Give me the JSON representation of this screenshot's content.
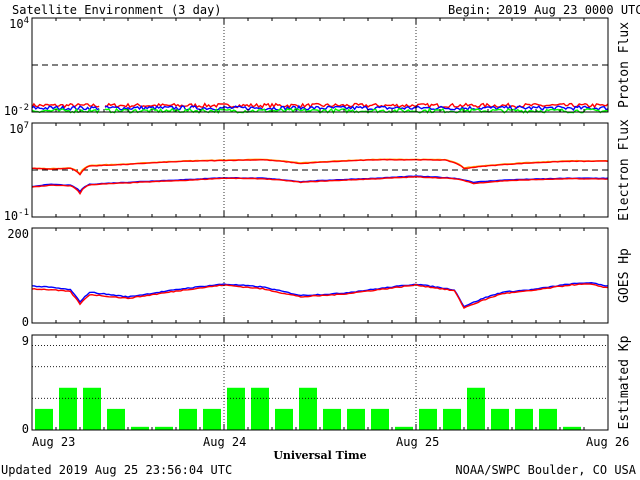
{
  "header": {
    "title": "Satellite Environment (3 day)",
    "begin_label": "Begin:",
    "begin_value": "2019 Aug 23 0000 UTC"
  },
  "footer": {
    "updated": "Updated 2019 Aug 25 23:56:04 UTC",
    "credit": "NOAA/SWPC Boulder, CO USA"
  },
  "colors": {
    "red": "#ff0000",
    "blue": "#0000ff",
    "green": "#00ff00",
    "orange": "#ffa500",
    "kp_bar": "#00ff00",
    "axes": "#000000"
  },
  "chart_data": [
    {
      "id": "proton",
      "type": "line",
      "ylabel": "Proton Flux",
      "yscale": "log",
      "ylim": [
        0.01,
        10000
      ],
      "y_ticks": [
        {
          "base": "10",
          "exp": "4"
        },
        {
          "base": "10",
          "exp": "-2"
        }
      ],
      "threshold": 10,
      "series": [
        {
          "color": "red",
          "level": 0.026
        },
        {
          "color": "blue",
          "level": 0.018
        },
        {
          "color": "green",
          "level": 0.012
        }
      ]
    },
    {
      "id": "electron",
      "type": "line",
      "ylabel": "Electron Flux",
      "yscale": "log",
      "ylim": [
        0.1,
        10000000
      ],
      "y_ticks": [
        {
          "base": "10",
          "exp": "7"
        },
        {
          "base": "10",
          "exp": "-1"
        }
      ],
      "threshold": 1000,
      "series": [
        {
          "color": "orange",
          "x": [
            0,
            0.1,
            0.2,
            0.25,
            0.3,
            0.5,
            0.8,
            1.0,
            1.2,
            1.4,
            1.6,
            1.8,
            2.0,
            2.15,
            2.25,
            2.5,
            2.8,
            3.0
          ],
          "y": [
            1400,
            1300,
            1500,
            500,
            2500,
            3200,
            6000,
            7000,
            8000,
            4000,
            6000,
            8000,
            8000,
            7500,
            1500,
            3500,
            6000,
            6000
          ]
        },
        {
          "color": "red",
          "x": [
            0,
            0.1,
            0.2,
            0.25,
            0.3,
            0.5,
            0.8,
            1.0,
            1.2,
            1.4,
            1.6,
            1.8,
            2.0,
            2.15,
            2.25,
            2.5,
            2.8,
            3.0
          ],
          "y": [
            1400,
            1200,
            1400,
            400,
            2200,
            3000,
            5500,
            6500,
            7500,
            3500,
            5500,
            7500,
            7500,
            7000,
            1300,
            3200,
            5500,
            5600
          ]
        },
        {
          "color": "blue",
          "x": [
            0,
            0.1,
            0.2,
            0.25,
            0.3,
            0.5,
            0.8,
            1.0,
            1.2,
            1.4,
            1.6,
            1.8,
            2.0,
            2.2,
            2.3,
            2.5,
            2.8,
            3.0
          ],
          "y": [
            40,
            60,
            50,
            15,
            60,
            90,
            150,
            220,
            200,
            100,
            150,
            200,
            300,
            200,
            90,
            150,
            200,
            200
          ]
        },
        {
          "color": "red",
          "x": [
            0,
            0.1,
            0.2,
            0.25,
            0.3,
            0.5,
            0.8,
            1.0,
            1.2,
            1.4,
            1.6,
            1.8,
            2.0,
            2.2,
            2.3,
            2.5,
            2.8,
            3.0
          ],
          "y": [
            35,
            50,
            45,
            10,
            55,
            80,
            130,
            200,
            180,
            90,
            130,
            180,
            260,
            180,
            70,
            130,
            180,
            170
          ]
        }
      ]
    },
    {
      "id": "hp",
      "type": "line",
      "ylabel": "GOES Hp",
      "ylim": [
        0,
        200
      ],
      "y_ticks": [
        {
          "value": "200"
        },
        {
          "value": "0"
        }
      ],
      "series": [
        {
          "color": "blue",
          "x": [
            0,
            0.1,
            0.2,
            0.25,
            0.3,
            0.5,
            0.8,
            1.0,
            1.2,
            1.4,
            1.6,
            1.8,
            2.0,
            2.2,
            2.25,
            2.35,
            2.45,
            2.6,
            2.8,
            2.9,
            3.0
          ],
          "y": [
            78,
            75,
            70,
            45,
            65,
            55,
            73,
            82,
            76,
            58,
            62,
            72,
            82,
            70,
            35,
            52,
            65,
            70,
            82,
            85,
            78
          ]
        },
        {
          "color": "red",
          "x": [
            0,
            0.1,
            0.2,
            0.25,
            0.3,
            0.5,
            0.8,
            1.0,
            1.2,
            1.4,
            1.6,
            1.8,
            2.0,
            2.2,
            2.25,
            2.35,
            2.45,
            2.6,
            2.8,
            2.9,
            3.0
          ],
          "y": [
            72,
            70,
            66,
            40,
            60,
            52,
            70,
            80,
            72,
            55,
            60,
            70,
            80,
            68,
            32,
            48,
            62,
            68,
            80,
            82,
            74
          ]
        }
      ]
    },
    {
      "id": "kp",
      "type": "bar",
      "ylabel": "Estimated Kp",
      "ylim": [
        0,
        9
      ],
      "y_ticks": [
        {
          "value": "9"
        },
        {
          "value": "0"
        }
      ],
      "values": [
        2,
        4,
        4,
        2,
        0.3,
        0.3,
        2,
        2,
        4,
        4,
        2,
        4,
        2,
        2,
        2,
        0.3,
        2,
        2,
        4,
        2,
        2,
        2,
        0.3,
        0
      ]
    }
  ],
  "x_axis": {
    "label": "Universal Time",
    "ticks": [
      "Aug 23",
      "Aug 24",
      "Aug 25",
      "Aug 26"
    ]
  }
}
